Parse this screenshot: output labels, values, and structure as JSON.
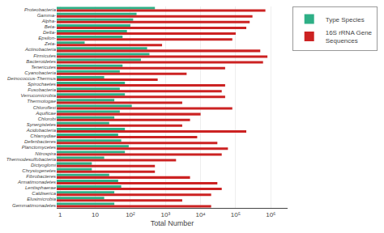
{
  "chart_data": {
    "type": "bar",
    "orientation": "horizontal",
    "categories": [
      "Proteobacteria",
      "Gamma-",
      "Alpha-",
      "Beta-",
      "Delta-",
      "Epsilon-",
      "Zeta-",
      "Actinobacteria",
      "Firmicutes",
      "Bacteroidetes",
      "Tenericutes",
      "Cyanobacteria",
      "Deinococcus-Thermus",
      "Spirochaetes",
      "Fusobacteria",
      "Verrucomicrobia",
      "Thermotogae",
      "Chloroflexi",
      "Aquificae",
      "Chlorobi",
      "Synergistetes",
      "Acidobacteria",
      "Chlamydiae",
      "Defenbacteres",
      "Planctomycetes",
      "Nitrospira",
      "Thermodesulfobacteria",
      "Dictyoglomi",
      "Chrysiogenetes",
      "Fibrobacteres",
      "Armatimonadetes",
      "Lentisphaerae",
      "Caldiserica",
      "Elusimicrobia",
      "Gemmatimonadetes"
    ],
    "series": [
      {
        "name": "Type Species",
        "color": "#2EAF86",
        "values": [
          500,
          150,
          120,
          100,
          80,
          60,
          5,
          300,
          350,
          200,
          60,
          50,
          18,
          70,
          50,
          70,
          35,
          110,
          50,
          35,
          25,
          70,
          45,
          55,
          90,
          70,
          18,
          8,
          8,
          25,
          45,
          55,
          35,
          18,
          35
        ]
      },
      {
        "name": "16S rRNA Gene\nSequences",
        "color": "#CC2222",
        "values": [
          700000,
          300000,
          250000,
          200000,
          100000,
          80000,
          800,
          500000,
          800000,
          600000,
          50000,
          4000,
          600,
          50000,
          40000,
          50000,
          3000,
          80000,
          10000,
          5000,
          3000,
          200000,
          8000,
          30000,
          60000,
          40000,
          2000,
          500,
          500,
          5000,
          30000,
          40000,
          20000,
          3000,
          20000
        ]
      }
    ],
    "xlabel": "Total Number",
    "log": "x",
    "xlim": [
      0.8,
      3000000
    ],
    "xticks": [
      1,
      10,
      {
        "value": 100,
        "label": "10²"
      },
      {
        "value": 1000,
        "label": "10³"
      },
      {
        "value": 10000,
        "label": "10⁴"
      },
      {
        "value": 100000,
        "label": "10⁵"
      },
      {
        "value": 1000000,
        "label": "10⁶"
      }
    ],
    "grid": true,
    "legend": "upper right"
  }
}
